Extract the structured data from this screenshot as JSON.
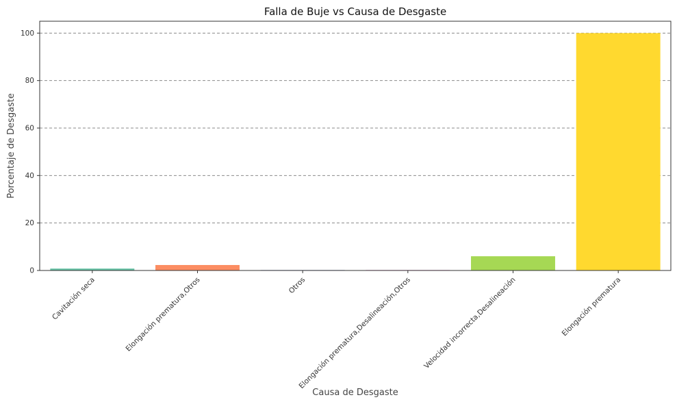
{
  "chart_data": {
    "type": "bar",
    "title": "Falla de Buje vs Causa de Desgaste",
    "xlabel": "Causa de Desgaste",
    "ylabel": "Porcentaje de Desgaste",
    "categories": [
      "Cavitación seca",
      "Elongación prematura,Otros",
      "Otros",
      "Elongación prematura,Desalineación,Otros",
      "Velocidad incorrecta,Desalineación",
      "Elongación prematura"
    ],
    "values": [
      0.8,
      2.3,
      0.2,
      0.2,
      6.0,
      100.0
    ],
    "colors": [
      "#66c2a5",
      "#fc8d62",
      "#8da0cb",
      "#e78ac3",
      "#a6d854",
      "#ffd92f"
    ],
    "ylim": [
      0,
      105
    ],
    "yticks": [
      0,
      20,
      40,
      60,
      80,
      100
    ],
    "grid": "horizontal dashed",
    "legend": "none"
  }
}
